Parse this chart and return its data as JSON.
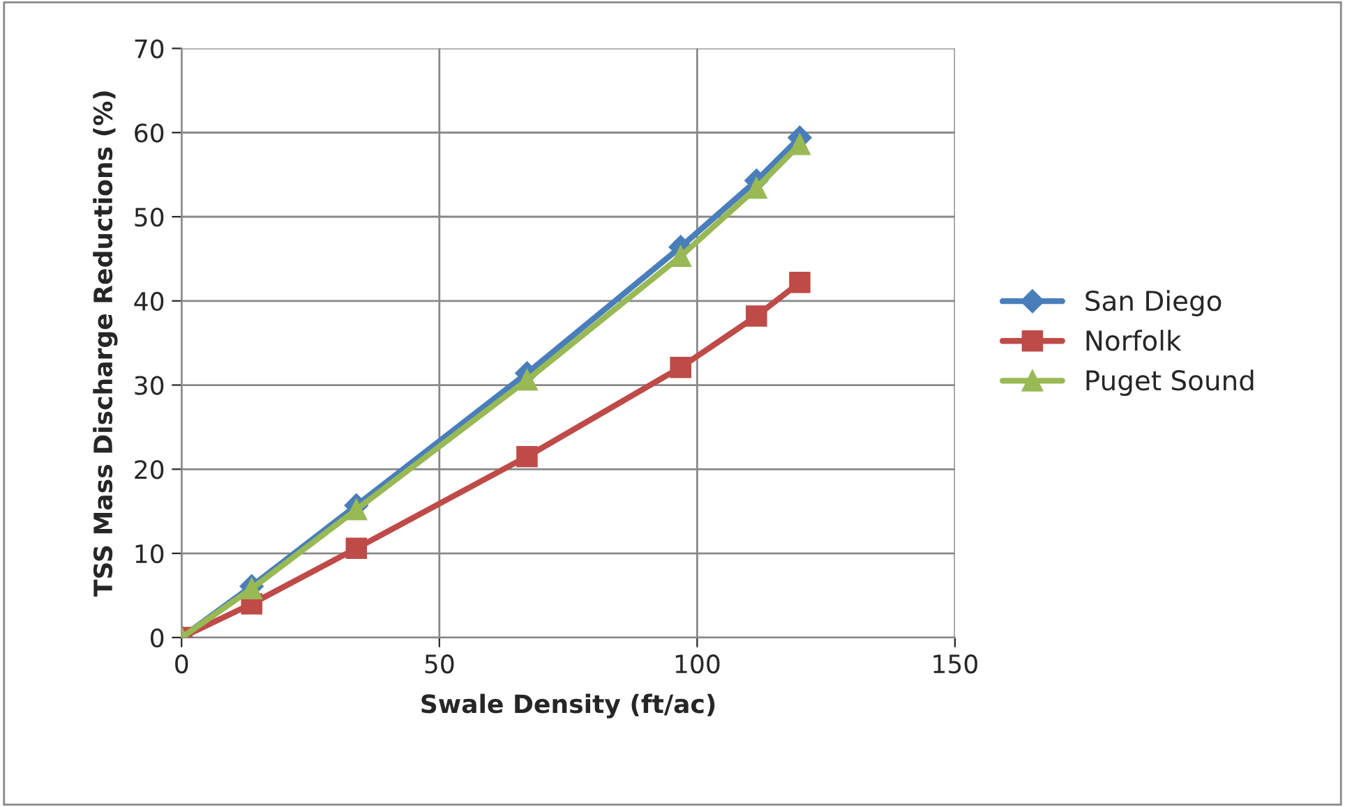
{
  "chart_data": {
    "type": "line",
    "xlabel": "Swale Density (ft/ac)",
    "ylabel": "TSS Mass Discharge Reductions (%)",
    "xlim": [
      0,
      150
    ],
    "xticks": [
      0,
      50,
      100,
      150
    ],
    "ylim": [
      0,
      70
    ],
    "yticks": [
      0,
      10,
      20,
      30,
      40,
      50,
      60,
      70
    ],
    "grid": true,
    "legend": "right",
    "series": [
      {
        "name": "San Diego",
        "color": "#4a7ebb",
        "marker": "diamond",
        "x": [
          0,
          13.6,
          33.9,
          67,
          96.8,
          111.5,
          119.9
        ],
        "values": [
          0,
          6.1,
          15.7,
          31.4,
          46.4,
          54.3,
          59.4
        ]
      },
      {
        "name": "Norfolk",
        "color": "#be4b48",
        "marker": "square",
        "x": [
          0,
          13.6,
          33.9,
          67,
          96.8,
          111.5,
          119.9
        ],
        "values": [
          0,
          4.0,
          10.6,
          21.5,
          32.1,
          38.2,
          42.2
        ]
      },
      {
        "name": "Puget Sound",
        "color": "#98b954",
        "marker": "triangle",
        "x": [
          0,
          13.6,
          33.9,
          67,
          96.8,
          111.5,
          119.9
        ],
        "values": [
          0,
          5.8,
          15.2,
          30.6,
          45.3,
          53.4,
          58.6
        ]
      }
    ]
  }
}
